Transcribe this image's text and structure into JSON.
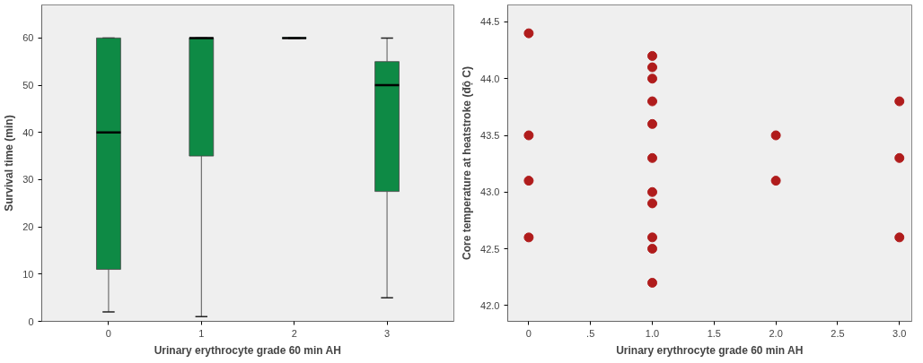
{
  "chart_data": [
    {
      "type": "box",
      "categories": [
        "0",
        "1",
        "2",
        "3"
      ],
      "color": "#0e8a45",
      "xlabel": "Urinary erythrocyte grade 60 min AH",
      "ylabel": "Survival time (min)",
      "ylim": [
        0,
        67
      ],
      "yticks": [
        0,
        10,
        20,
        30,
        40,
        50,
        60
      ],
      "grid": false,
      "boxes": [
        {
          "low": 2,
          "q1": 11,
          "median": 40,
          "q3": 60,
          "high": 60
        },
        {
          "low": 1,
          "q1": 35,
          "median": 60,
          "q3": 60,
          "high": 60
        },
        {
          "low": 60,
          "q1": 60,
          "median": 60,
          "q3": 60,
          "high": 60
        },
        {
          "low": 5,
          "q1": 27.5,
          "median": 50,
          "q3": 55,
          "high": 60
        }
      ]
    },
    {
      "type": "scatter",
      "xlabel": "Urinary erythrocyte grade 60 min AH",
      "ylabel": "Core temperature at heatstroke (độ C)",
      "marker": "circle",
      "grid": false,
      "xlim": [
        -0.17,
        3.1
      ],
      "xticks": [
        {
          "value": 0,
          "label": "0"
        },
        {
          "value": 0.5,
          "label": ".5"
        },
        {
          "value": 1,
          "label": "1.0"
        },
        {
          "value": 1.5,
          "label": "1.5"
        },
        {
          "value": 2,
          "label": "2.0"
        },
        {
          "value": 2.5,
          "label": "2.5"
        },
        {
          "value": 3,
          "label": "3.0"
        }
      ],
      "ylim": [
        41.86,
        44.65
      ],
      "yticks": [
        {
          "value": 42,
          "label": "42.0"
        },
        42.5,
        {
          "value": 43,
          "label": "43.0"
        },
        43.5,
        {
          "value": 44,
          "label": "44.0"
        },
        44.5
      ],
      "series": [
        {
          "color": "#b01c1c",
          "x": [
            0,
            0,
            0,
            0,
            1,
            1,
            1,
            1,
            1,
            1,
            1,
            1,
            1,
            1,
            1,
            2,
            2,
            3,
            3,
            3
          ],
          "values": [
            44.4,
            43.5,
            43.1,
            42.6,
            44.2,
            44.1,
            44.0,
            43.8,
            43.6,
            43.3,
            43.0,
            42.9,
            42.6,
            42.5,
            42.2,
            43.5,
            43.1,
            43.8,
            43.3,
            42.6
          ]
        }
      ]
    }
  ]
}
